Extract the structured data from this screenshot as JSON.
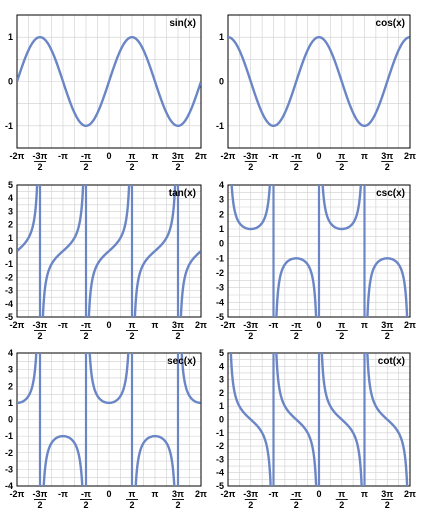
{
  "colors": {
    "curve": "#6b86c6",
    "grid": "#cfcfcf",
    "axis": "#000000",
    "background": "#ffffff"
  },
  "x_tick_labels": [
    {
      "v": -6.283185,
      "text": "-2π"
    },
    {
      "v": -4.712389,
      "num": "-3π",
      "den": "2"
    },
    {
      "v": -3.141593,
      "text": "-π"
    },
    {
      "v": -1.570796,
      "num": "-π",
      "den": "2"
    },
    {
      "v": 0,
      "text": "0"
    },
    {
      "v": 1.570796,
      "num": "π",
      "den": "2"
    },
    {
      "v": 3.141593,
      "text": "π"
    },
    {
      "v": 4.712389,
      "num": "3π",
      "den": "2"
    },
    {
      "v": 6.283185,
      "text": "2π"
    }
  ],
  "chart_data": [
    {
      "type": "line",
      "title": "sin(x)",
      "function": "sin",
      "xlim": [
        -6.283185,
        6.283185
      ],
      "ylim": [
        -1.5,
        1.5
      ],
      "yticks": [
        -1,
        0,
        1
      ],
      "grid": true,
      "series": [
        {
          "x_start": -6.283185,
          "x_end": 6.283185,
          "x_step": 0.0245
        }
      ]
    },
    {
      "type": "line",
      "title": "cos(x)",
      "function": "cos",
      "xlim": [
        -6.283185,
        6.283185
      ],
      "ylim": [
        -1.5,
        1.5
      ],
      "yticks": [
        -1,
        0,
        1
      ],
      "grid": true,
      "series": [
        {
          "x_start": -6.283185,
          "x_end": 6.283185,
          "x_step": 0.0245
        }
      ]
    },
    {
      "type": "line",
      "title": "tan(x)",
      "function": "tan",
      "xlim": [
        -6.283185,
        6.283185
      ],
      "ylim": [
        -5,
        5
      ],
      "yticks": [
        -5,
        -4,
        -3,
        -2,
        -1,
        0,
        1,
        2,
        3,
        4,
        5
      ],
      "grid": true,
      "asymptotes": [
        -4.712389,
        -1.570796,
        1.570796,
        4.712389
      ],
      "series": [
        {
          "x_start": -6.283185,
          "x_end": 6.283185,
          "x_step": 0.0245
        }
      ]
    },
    {
      "type": "line",
      "title": "csc(x)",
      "function": "csc",
      "xlim": [
        -6.283185,
        6.283185
      ],
      "ylim": [
        -5,
        4
      ],
      "yticks": [
        -5,
        -4,
        -3,
        -2,
        -1,
        0,
        1,
        2,
        3,
        4
      ],
      "grid": true,
      "asymptotes": [
        -3.141593,
        0,
        3.141593
      ],
      "series": [
        {
          "x_start": -6.283185,
          "x_end": 6.283185,
          "x_step": 0.0245
        }
      ]
    },
    {
      "type": "line",
      "title": "sec(x)",
      "function": "sec",
      "xlim": [
        -6.283185,
        6.283185
      ],
      "ylim": [
        -4,
        4
      ],
      "yticks": [
        -4,
        -3,
        -2,
        -1,
        0,
        1,
        2,
        3,
        4
      ],
      "grid": true,
      "asymptotes": [
        -4.712389,
        -1.570796,
        1.570796,
        4.712389
      ],
      "series": [
        {
          "x_start": -6.283185,
          "x_end": 6.283185,
          "x_step": 0.0245
        }
      ]
    },
    {
      "type": "line",
      "title": "cot(x)",
      "function": "cot",
      "xlim": [
        -6.283185,
        6.283185
      ],
      "ylim": [
        -5,
        5
      ],
      "yticks": [
        -5,
        -4,
        -3,
        -2,
        -1,
        0,
        1,
        2,
        3,
        4,
        5
      ],
      "grid": true,
      "asymptotes": [
        -3.141593,
        0,
        3.141593
      ],
      "series": [
        {
          "x_start": -6.283185,
          "x_end": 6.283185,
          "x_step": 0.0245
        }
      ]
    }
  ]
}
